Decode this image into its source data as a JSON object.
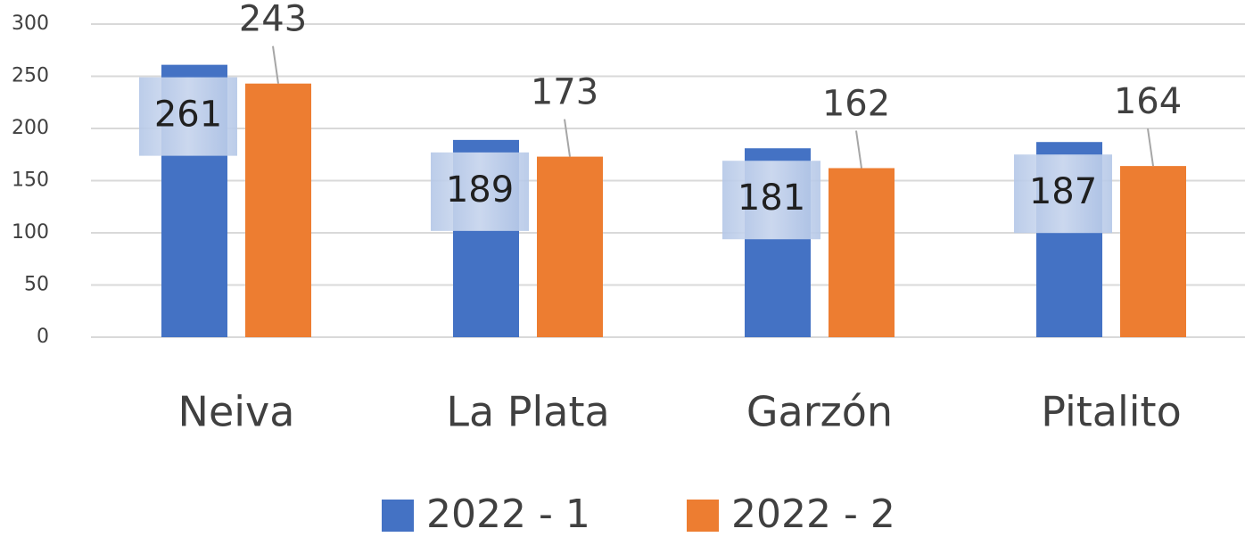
{
  "chart_data": {
    "type": "bar",
    "categories": [
      "Neiva",
      "La Plata",
      "Garzón",
      "Pitalito"
    ],
    "series": [
      {
        "name": "2022 - 1",
        "color": "#4472c4",
        "values": [
          261,
          189,
          181,
          187
        ]
      },
      {
        "name": "2022 - 2",
        "color": "#ed7d31",
        "values": [
          243,
          173,
          162,
          164
        ]
      }
    ],
    "ylim": [
      0,
      300
    ],
    "yticks": [
      0,
      50,
      100,
      150,
      200,
      250,
      300
    ],
    "grid": true,
    "legend": "bottom"
  }
}
